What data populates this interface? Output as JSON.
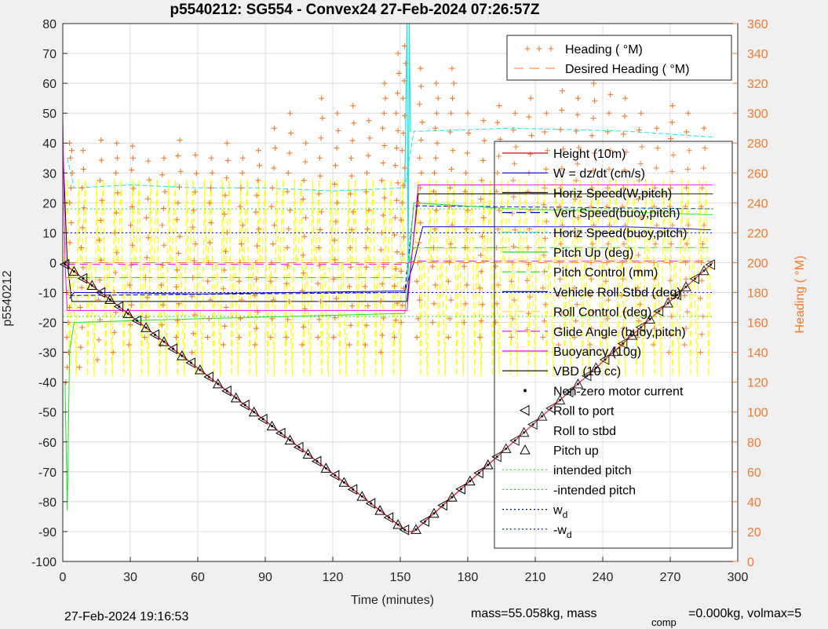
{
  "chart_data": {
    "type": "line",
    "title": "p5540212: SG554 - Convex24 27-Feb-2024 07:26:57Z",
    "xlabel": "Time (minutes)",
    "ylabel": "p5540212",
    "y2label": "Heading (  °M)",
    "xlim": [
      0,
      300
    ],
    "ylim": [
      -100,
      80
    ],
    "y2lim": [
      0,
      360
    ],
    "xticks": [
      "0",
      "30",
      "60",
      "90",
      "120",
      "150",
      "180",
      "210",
      "240",
      "270",
      "300"
    ],
    "yticks": [
      "-100",
      "-90",
      "-80",
      "-70",
      "-60",
      "-50",
      "-40",
      "-30",
      "-20",
      "-10",
      "0",
      "10",
      "20",
      "30",
      "40",
      "50",
      "60",
      "70",
      "80"
    ],
    "y2ticks": [
      "0",
      "20",
      "40",
      "60",
      "80",
      "100",
      "120",
      "140",
      "160",
      "180",
      "200",
      "220",
      "240",
      "260",
      "280",
      "300",
      "320",
      "340",
      "360"
    ],
    "grid": true,
    "legend_heading": {
      "placement": "top-right",
      "entries": [
        "Heading (  °M)",
        "Desired Heading (  °M)"
      ]
    },
    "legend_main": {
      "placement": "right",
      "entries": [
        {
          "label": "Height (10m)",
          "color": "#e8001c",
          "style": "solid",
          "marker": ""
        },
        {
          "label": "W = dz/dt (cm/s)",
          "color": "#0000dd",
          "style": "solid",
          "marker": ""
        },
        {
          "label": "Horiz Speed(W,pitch)",
          "color": "#000000",
          "style": "solid",
          "marker": ""
        },
        {
          "label": "Vert Speed(buoy,pitch)",
          "color": "#0000dd",
          "style": "dashed",
          "marker": ""
        },
        {
          "label": "Horiz Speed(buoy,pitch)",
          "color": "#22e0e0",
          "style": "dashed",
          "marker": ""
        },
        {
          "label": "Pitch Up (deg)",
          "color": "#22e022",
          "style": "solid",
          "marker": ""
        },
        {
          "label": "Pitch Control (mm)",
          "color": "#22e022",
          "style": "dashed",
          "marker": ""
        },
        {
          "label": "Vehicle Roll Stbd (deg)",
          "color": "#0000dd",
          "style": "solid",
          "marker": ""
        },
        {
          "label": "Roll Control (deg)",
          "color": "#ffff00",
          "style": "dashed",
          "marker": ""
        },
        {
          "label": "Glide Angle (buoy,pitch)",
          "color": "#ff00ff",
          "style": "dashed",
          "marker": ""
        },
        {
          "label": "Buoyancy (10g)",
          "color": "#ff00ff",
          "style": "solid",
          "marker": ""
        },
        {
          "label": "VBD (10 cc)",
          "color": "#000000",
          "style": "solid",
          "marker": ""
        },
        {
          "label": "Non-zero motor current",
          "color": "#000000",
          "style": "none",
          "marker": "dot"
        },
        {
          "label": "Roll to port",
          "color": "#000000",
          "style": "none",
          "marker": "tri-left"
        },
        {
          "label": "Roll to stbd",
          "color": "#000000",
          "style": "none",
          "marker": "tri-right"
        },
        {
          "label": "Pitch up",
          "color": "#000000",
          "style": "none",
          "marker": "tri-up"
        },
        {
          "label": "intended pitch",
          "color": "#22e022",
          "style": "dotted",
          "marker": ""
        },
        {
          "label": "-intended pitch",
          "color": "#22e022",
          "style": "dotted",
          "marker": ""
        },
        {
          "label": "w",
          "sub": "d",
          "color": "#0000dd",
          "style": "dotted",
          "marker": ""
        },
        {
          "label": "-w",
          "sub": "d",
          "color": "#0000dd",
          "style": "dotted",
          "marker": ""
        }
      ]
    },
    "series": [
      {
        "name": "Height (10m)",
        "axis": "left",
        "color": "#e8001c",
        "width": 1.2,
        "x": [
          0,
          153,
          156,
          289
        ],
        "y": [
          0,
          -90,
          -90,
          0
        ]
      },
      {
        "name": "Horiz Speed(W,pitch)",
        "axis": "left",
        "color": "#000000",
        "width": 1,
        "x": [
          0,
          2,
          4,
          152,
          153,
          158,
          289
        ],
        "y": [
          40,
          0,
          -13,
          -13,
          -13,
          23,
          23
        ]
      },
      {
        "name": "W = dz/dt (cm/s)",
        "axis": "left",
        "color": "#0000dd",
        "width": 1,
        "x": [
          3,
          5,
          20,
          60,
          100,
          152,
          156,
          160,
          200,
          250,
          288
        ],
        "y": [
          -12,
          -10,
          -10,
          -10.5,
          -10,
          -9.5,
          0,
          12,
          12,
          12,
          11
        ]
      },
      {
        "name": "Vert Speed(buoy,pitch)",
        "axis": "left",
        "color": "#0000dd",
        "width": 1,
        "dash": "6,3",
        "x": [
          3,
          152,
          156,
          289
        ],
        "y": [
          -11,
          -10,
          19,
          18
        ]
      },
      {
        "name": "Horiz Speed(buoy,pitch)",
        "axis": "left",
        "color": "#22e0e0",
        "width": 1,
        "dash": "6,3",
        "x": [
          2,
          5,
          30,
          60,
          90,
          120,
          152,
          156,
          160,
          200,
          250,
          289
        ],
        "y": [
          35,
          25,
          26,
          25,
          25,
          24,
          25,
          44,
          44,
          45,
          44,
          42
        ]
      },
      {
        "name": "Pitch Up (deg)",
        "axis": "left",
        "color": "#22e022",
        "width": 1,
        "x": [
          1,
          2,
          3,
          5,
          50,
          100,
          152,
          156,
          200,
          250,
          289
        ],
        "y": [
          -40,
          -83,
          -30,
          -20,
          -19,
          -18,
          -17,
          20,
          18,
          17,
          16
        ]
      },
      {
        "name": "Pitch Control (mm)",
        "axis": "left",
        "color": "#22e022",
        "width": 1,
        "dash": "10,6",
        "x": [
          3,
          152,
          156,
          289
        ],
        "y": [
          -5,
          -5,
          5,
          5
        ]
      },
      {
        "name": "Glide Angle (buoy,pitch)",
        "axis": "left",
        "color": "#ff00ff",
        "width": 1,
        "dash": "10,6",
        "x": [
          2,
          152,
          156,
          289
        ],
        "y": [
          -0.5,
          -0.5,
          0.5,
          0.5
        ]
      },
      {
        "name": "Buoyancy (10g)",
        "axis": "left",
        "color": "#ff00ff",
        "width": 1,
        "x": [
          0,
          1,
          2,
          153,
          158,
          289
        ],
        "y": [
          49,
          0,
          -16,
          -16,
          26,
          26
        ]
      },
      {
        "name": "intended pitch",
        "axis": "left",
        "color": "#22e022",
        "width": 1,
        "dash": "2,3",
        "x": [
          0,
          289
        ],
        "y": [
          18,
          18
        ]
      },
      {
        "name": "-intended pitch",
        "axis": "left",
        "color": "#22e022",
        "width": 1,
        "dash": "2,3",
        "x": [
          0,
          289
        ],
        "y": [
          -18,
          -18
        ]
      },
      {
        "name": "w_d",
        "axis": "left",
        "color": "#0000dd",
        "width": 1,
        "dash": "2,3",
        "x": [
          0,
          289
        ],
        "y": [
          10,
          10
        ]
      },
      {
        "name": "-w_d",
        "axis": "left",
        "color": "#0000dd",
        "width": 1,
        "dash": "2,3",
        "x": [
          0,
          289
        ],
        "y": [
          -10,
          -10
        ]
      },
      {
        "name": "Desired Heading (  °M)",
        "axis": "right",
        "color": "#f47a2c",
        "width": 1,
        "dash": "12,8",
        "x": [
          2,
          152,
          156,
          289
        ],
        "y": [
          200,
          200,
          200,
          200
        ]
      }
    ],
    "cyan_spike": {
      "x": [
        152,
        153,
        153.5,
        154,
        154.5,
        155
      ],
      "y": [
        25,
        80,
        -5,
        80,
        44,
        44
      ]
    },
    "roll_control_pulses": {
      "color": "#ffff00",
      "x": [
        2,
        6,
        10,
        14,
        18,
        22,
        26,
        30,
        34,
        38,
        42,
        46,
        50,
        54,
        58,
        62,
        66,
        70,
        74,
        78,
        82,
        86,
        90,
        94,
        98,
        102,
        106,
        110,
        114,
        118,
        122,
        126,
        130,
        134,
        138,
        142,
        146,
        150,
        158,
        162,
        166,
        170,
        174,
        178,
        182,
        186,
        190,
        194,
        198,
        202,
        206,
        210,
        214,
        218,
        222,
        226,
        230,
        234,
        238,
        242,
        246,
        250,
        254,
        258,
        262,
        266,
        270,
        274,
        278,
        282,
        286
      ],
      "min": -38,
      "max": 28
    },
    "heading_bursts": {
      "color": "#f47a2c",
      "bursts": [
        {
          "x": 2,
          "h": [
            120,
            150,
            180,
            200,
            240,
            270,
            280
          ]
        },
        {
          "x": 8,
          "h": [
            130,
            170,
            210,
            250,
            275
          ]
        },
        {
          "x": 16,
          "h": [
            135,
            175,
            215,
            255,
            282
          ]
        },
        {
          "x": 23,
          "h": [
            140,
            180,
            220,
            260,
            280
          ]
        },
        {
          "x": 30,
          "h": [
            145,
            185,
            225,
            262,
            278
          ]
        },
        {
          "x": 37,
          "h": [
            150,
            190,
            230,
            268
          ]
        },
        {
          "x": 44,
          "h": [
            145,
            185,
            225,
            270
          ]
        },
        {
          "x": 51,
          "h": [
            150,
            195,
            240,
            282
          ]
        },
        {
          "x": 58,
          "h": [
            140,
            190,
            235,
            272
          ]
        },
        {
          "x": 65,
          "h": [
            150,
            200,
            240,
            270
          ]
        },
        {
          "x": 72,
          "h": [
            145,
            195,
            245,
            280
          ]
        },
        {
          "x": 79,
          "h": [
            150,
            200,
            250,
            270
          ]
        },
        {
          "x": 86,
          "h": [
            145,
            200,
            245,
            275
          ]
        },
        {
          "x": 93,
          "h": [
            150,
            200,
            250,
            290
          ]
        },
        {
          "x": 100,
          "h": [
            150,
            210,
            260,
            300
          ]
        },
        {
          "x": 107,
          "h": [
            145,
            205,
            255,
            280
          ]
        },
        {
          "x": 114,
          "h": [
            150,
            210,
            270,
            310
          ]
        },
        {
          "x": 121,
          "h": [
            150,
            215,
            265,
            300
          ]
        },
        {
          "x": 128,
          "h": [
            145,
            210,
            270,
            305
          ]
        },
        {
          "x": 135,
          "h": [
            145,
            210,
            260,
            295
          ]
        },
        {
          "x": 142,
          "h": [
            140,
            220,
            290,
            320
          ]
        },
        {
          "x": 148,
          "h": [
            150,
            230,
            300,
            340
          ]
        },
        {
          "x": 151,
          "h": [
            160,
            240,
            310,
            345
          ]
        },
        {
          "x": 158,
          "h": [
            150,
            200,
            240,
            270,
            330
          ]
        },
        {
          "x": 165,
          "h": [
            160,
            210,
            260,
            290,
            320
          ]
        },
        {
          "x": 172,
          "h": [
            150,
            200,
            250,
            300,
            330
          ]
        },
        {
          "x": 179,
          "h": [
            160,
            210,
            260,
            300
          ]
        },
        {
          "x": 186,
          "h": [
            150,
            205,
            255,
            295
          ]
        },
        {
          "x": 193,
          "h": [
            160,
            210,
            260,
            305
          ]
        },
        {
          "x": 200,
          "h": [
            150,
            200,
            255,
            300
          ]
        },
        {
          "x": 207,
          "h": [
            155,
            210,
            260,
            310
          ]
        },
        {
          "x": 214,
          "h": [
            150,
            205,
            250,
            300
          ]
        },
        {
          "x": 221,
          "h": [
            145,
            200,
            250,
            315
          ]
        },
        {
          "x": 228,
          "h": [
            150,
            205,
            255,
            310
          ]
        },
        {
          "x": 235,
          "h": [
            145,
            200,
            250,
            320
          ]
        },
        {
          "x": 242,
          "h": [
            150,
            200,
            250,
            325
          ]
        },
        {
          "x": 249,
          "h": [
            145,
            200,
            250,
            310
          ]
        },
        {
          "x": 256,
          "h": [
            150,
            205,
            255,
            300
          ]
        },
        {
          "x": 263,
          "h": [
            145,
            200,
            250,
            290
          ]
        },
        {
          "x": 270,
          "h": [
            140,
            200,
            250,
            305
          ]
        },
        {
          "x": 277,
          "h": [
            145,
            200,
            250,
            300
          ]
        },
        {
          "x": 284,
          "h": [
            140,
            200,
            250,
            290
          ]
        }
      ]
    },
    "pitch_markers": {
      "dive_x": [
        1,
        5,
        9,
        13,
        17,
        21,
        25,
        29,
        33,
        37,
        41,
        45,
        49,
        53,
        57,
        61,
        65,
        69,
        73,
        77,
        81,
        85,
        89,
        93,
        97,
        101,
        105,
        109,
        113,
        117,
        121,
        125,
        129,
        133,
        137,
        141,
        145,
        149,
        152
      ],
      "climb_x": [
        157,
        161,
        165,
        169,
        173,
        177,
        181,
        185,
        189,
        193,
        197,
        201,
        205,
        209,
        213,
        217,
        221,
        225,
        229,
        233,
        237,
        241,
        245,
        249,
        253,
        257,
        261,
        265,
        269,
        273,
        277,
        281,
        285,
        288
      ]
    },
    "footer": {
      "timestamp": "27-Feb-2024 19:16:53",
      "mass": "mass=55.058kg, mass",
      "comp": "comp",
      "tail": "=0.000kg, volmax=5"
    }
  }
}
